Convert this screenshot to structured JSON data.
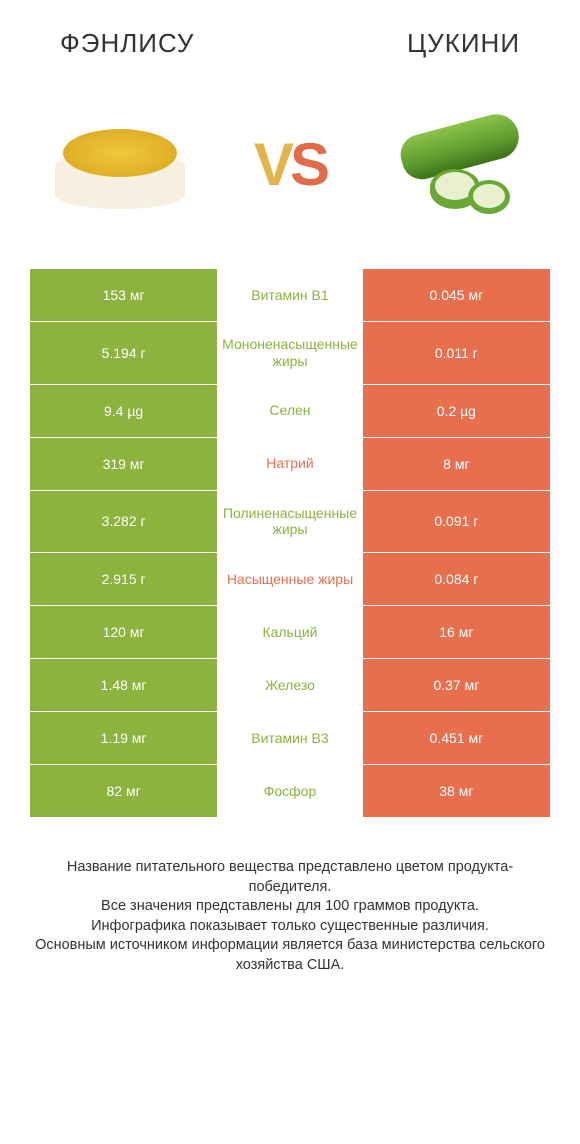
{
  "header": {
    "left_title": "ФЭНЛИСУ",
    "right_title": "ЦУКИНИ",
    "vs_text": "VS"
  },
  "colors": {
    "left_bar": "#8cb33e",
    "right_bar": "#e86f4e",
    "left_winner_text": "#8cb33e",
    "right_winner_text": "#e86f4e",
    "background": "#ffffff",
    "header_text": "#333333",
    "footer_text": "#333333",
    "vs_v": "#e2b44a",
    "vs_s": "#e26b4a"
  },
  "typography": {
    "header_fontsize": 26,
    "value_fontsize": 14,
    "label_fontsize": 14,
    "footer_fontsize": 14.5,
    "vs_fontsize": 60
  },
  "rows": [
    {
      "left": "153 мг",
      "label": "Витамин B1",
      "right": "0.045 мг",
      "winner": "left"
    },
    {
      "left": "5.194 г",
      "label": "Мононенасыщенные жиры",
      "right": "0.011 г",
      "winner": "left"
    },
    {
      "left": "9.4 µg",
      "label": "Селен",
      "right": "0.2 µg",
      "winner": "left"
    },
    {
      "left": "319 мг",
      "label": "Натрий",
      "right": "8 мг",
      "winner": "right"
    },
    {
      "left": "3.282 г",
      "label": "Полиненасыщенные жиры",
      "right": "0.091 г",
      "winner": "left"
    },
    {
      "left": "2.915 г",
      "label": "Насыщенные жиры",
      "right": "0.084 г",
      "winner": "right"
    },
    {
      "left": "120 мг",
      "label": "Кальций",
      "right": "16 мг",
      "winner": "left"
    },
    {
      "left": "1.48 мг",
      "label": "Железо",
      "right": "0.37 мг",
      "winner": "left"
    },
    {
      "left": "1.19 мг",
      "label": "Витамин B3",
      "right": "0.451 мг",
      "winner": "left"
    },
    {
      "left": "82 мг",
      "label": "Фосфор",
      "right": "38 мг",
      "winner": "left"
    }
  ],
  "footer": {
    "line1": "Название питательного вещества представлено цветом продукта-победителя.",
    "line2": "Все значения представлены для 100 граммов продукта.",
    "line3": "Инфографика показывает только существенные различия.",
    "line4": "Основным источником информации является база министерства сельского хозяйства США."
  }
}
